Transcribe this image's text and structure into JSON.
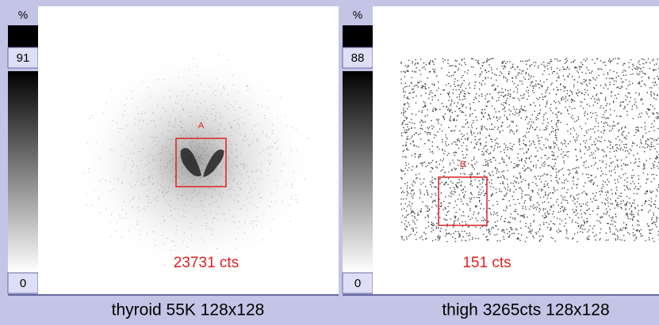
{
  "panels": [
    {
      "scale_unit": "%",
      "scale_max": "91",
      "scale_min": "0",
      "roi_label": "A",
      "counts": "23731 cts",
      "caption": "thyroid 55K 128x128"
    },
    {
      "scale_unit": "%",
      "scale_max": "88",
      "scale_min": "0",
      "roi_label": "B",
      "counts": "151 cts",
      "caption": "thigh 3265cts 128x128"
    }
  ]
}
